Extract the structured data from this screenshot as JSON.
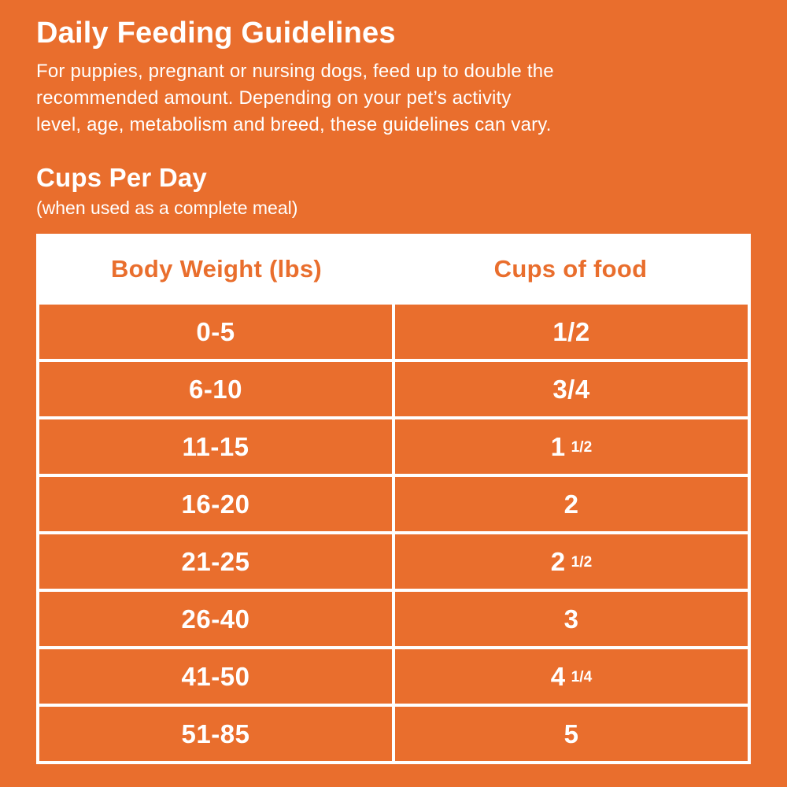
{
  "page": {
    "background_color": "#E96E2D",
    "text_color": "#FFFFFF"
  },
  "intro": {
    "title": "Daily Feeding Guidelines",
    "description_lines": [
      "For puppies, pregnant or nursing dogs, feed up to double the",
      "recommended amount. Depending on your pet’s activity",
      "level, age, metabolism and breed, these guidelines can vary."
    ]
  },
  "section": {
    "heading": "Cups Per Day",
    "subheading": "(when used as a complete meal)"
  },
  "feeding_table": {
    "accent_color": "#E96E2D",
    "columns": [
      "Body Weight (lbs)",
      "Cups of food"
    ],
    "rows": [
      {
        "body_weight": "0-5",
        "cups": "1/2"
      },
      {
        "body_weight": "6-10",
        "cups": "3/4"
      },
      {
        "body_weight": "11-15",
        "cups": "1 1/2"
      },
      {
        "body_weight": "16-20",
        "cups": "2"
      },
      {
        "body_weight": "21-25",
        "cups": "2 1/2"
      },
      {
        "body_weight": "26-40",
        "cups": "3"
      },
      {
        "body_weight": "41-50",
        "cups": "4 1/4"
      },
      {
        "body_weight": "51-85",
        "cups": "5"
      }
    ]
  }
}
